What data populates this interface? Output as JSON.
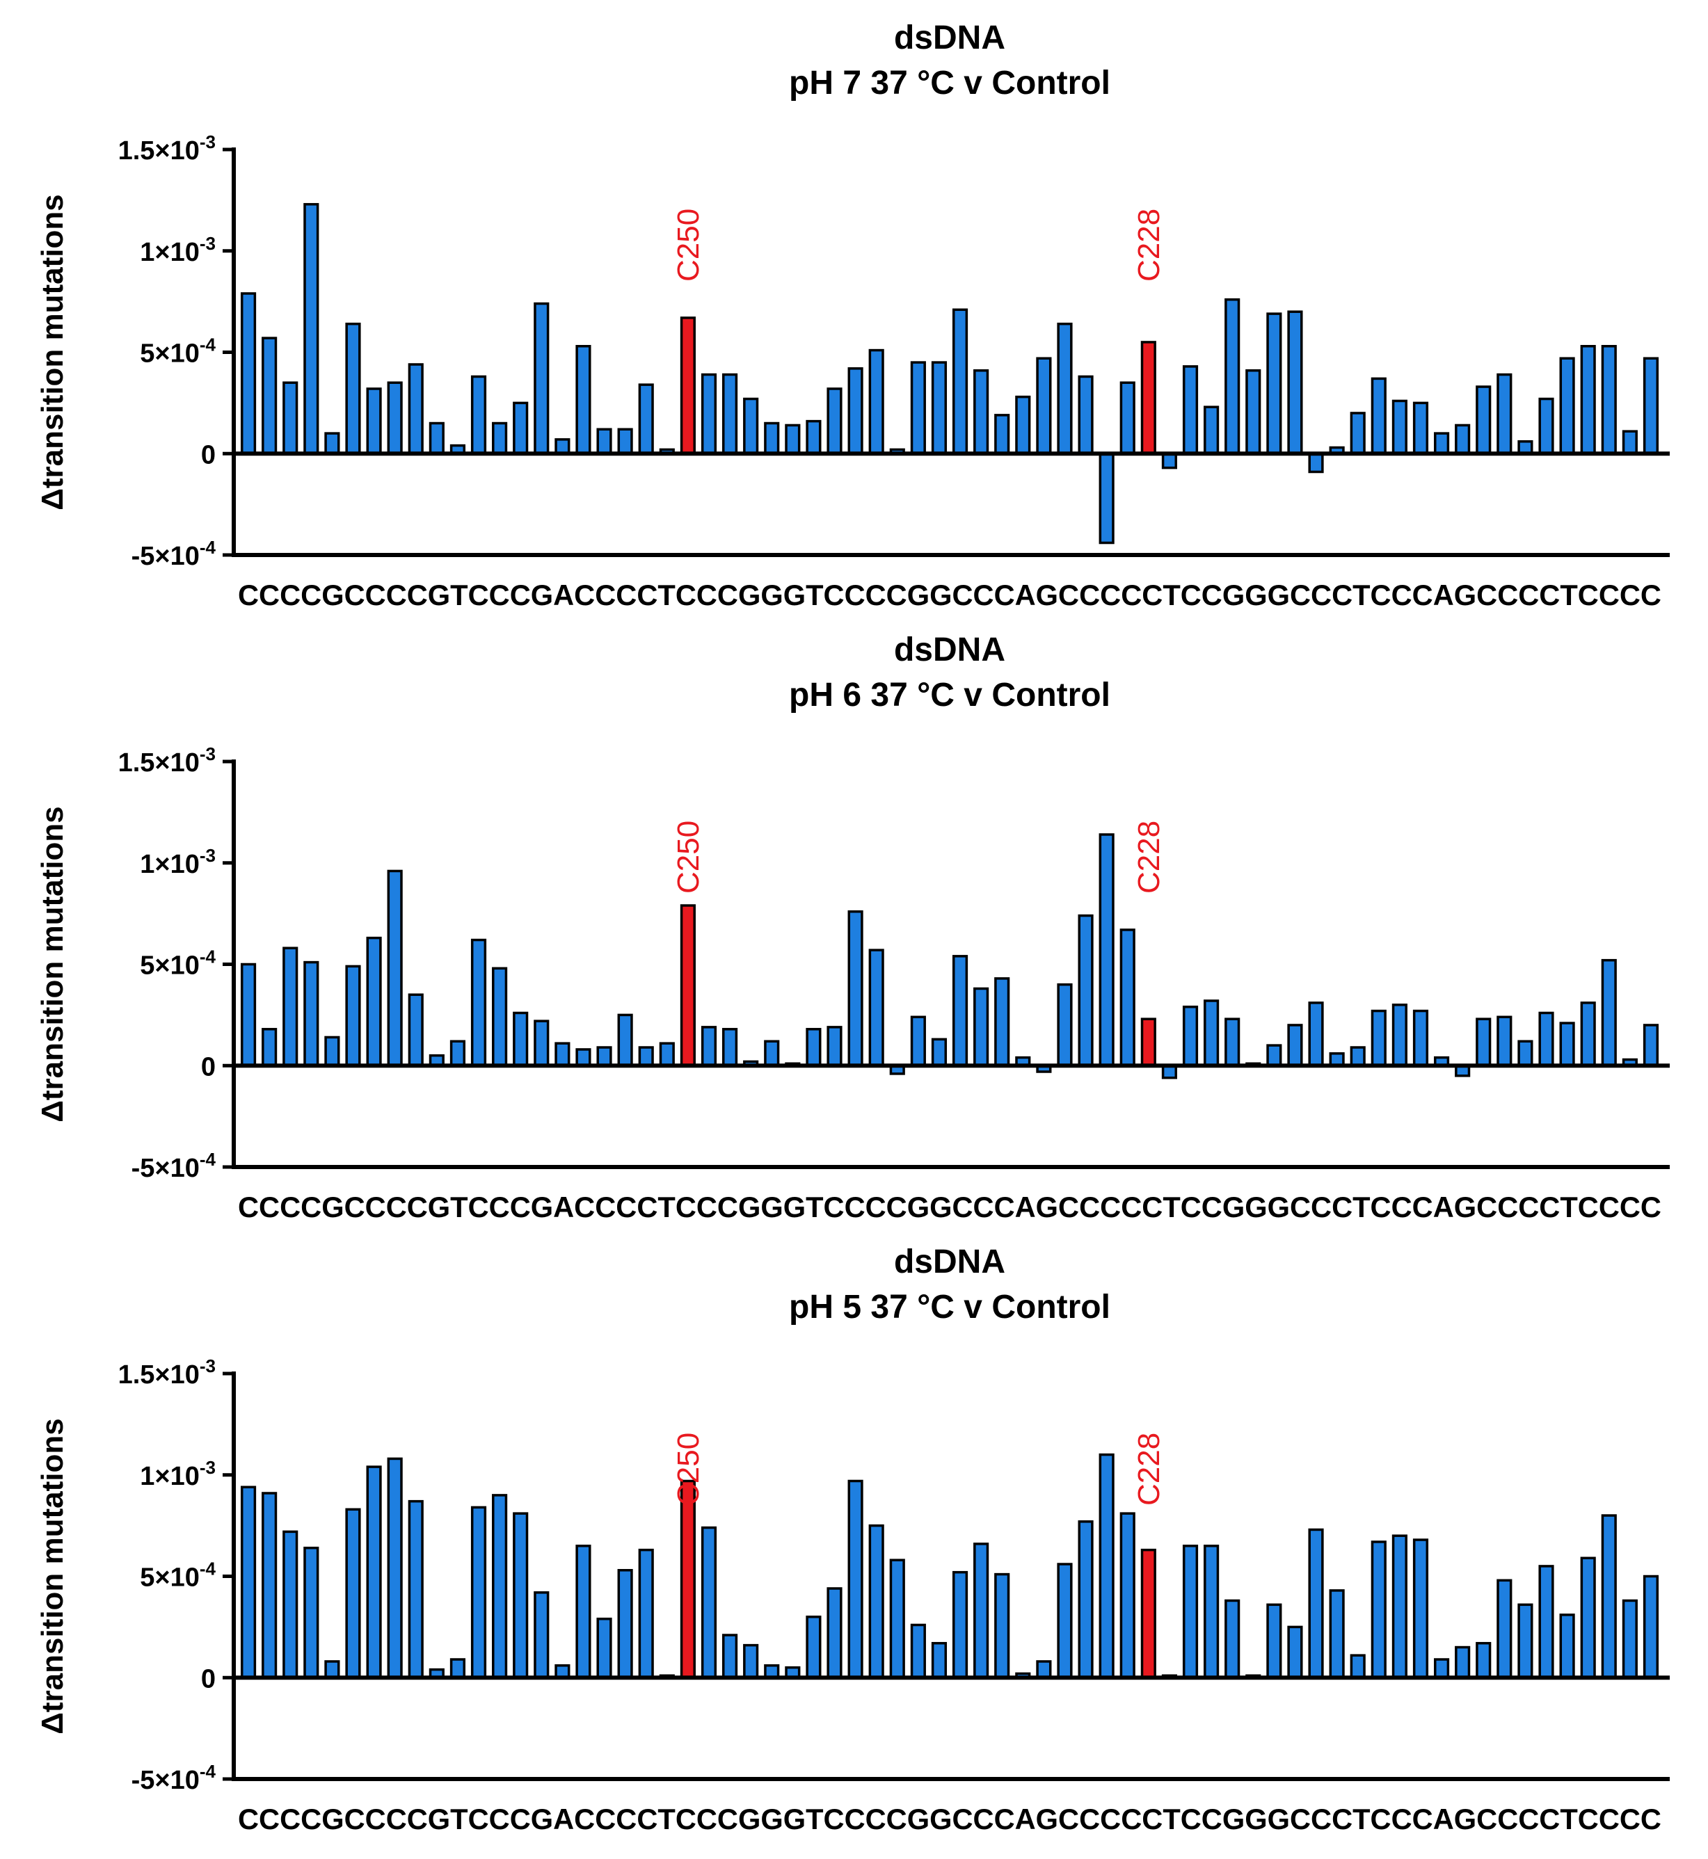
{
  "chart_data": [
    {
      "type": "bar",
      "title": "dsDNA",
      "subtitle": "pH 7 37 °C v Control",
      "ylabel": "Δtransition mutations",
      "xlabel_sequence": "CCCCGCCCCGTCCCGACCCCTCCCGGGTCCCCGGCCCAGCCCCCTCCGGGCCCTCCCAGCCCCTCCCC",
      "ylim": [
        -0.0005,
        0.0015
      ],
      "yticks": [
        {
          "value": -0.0005,
          "base": "-5×10",
          "exp": "-4"
        },
        {
          "value": 0,
          "base": "0",
          "exp": ""
        },
        {
          "value": 0.0005,
          "base": "5×10",
          "exp": "-4"
        },
        {
          "value": 0.001,
          "base": "1×10",
          "exp": "-3"
        },
        {
          "value": 0.0015,
          "base": "1.5×10",
          "exp": "-3"
        }
      ],
      "values": [
        0.00079,
        0.00057,
        0.00035,
        0.00123,
        0.0001,
        0.00064,
        0.00032,
        0.00035,
        0.00044,
        0.00015,
        4e-05,
        0.00038,
        0.00015,
        0.00025,
        0.00074,
        7e-05,
        0.00053,
        0.00012,
        0.00012,
        0.00034,
        2e-05,
        0.00067,
        0.00039,
        0.00039,
        0.00027,
        0.00015,
        0.00014,
        0.00016,
        0.00032,
        0.00042,
        0.00051,
        2e-05,
        0.00045,
        0.00045,
        0.00071,
        0.00041,
        0.00019,
        0.00028,
        0.00047,
        0.00064,
        0.00038,
        -0.00044,
        0.00035,
        0.00055,
        -7e-05,
        0.00043,
        0.00023,
        0.00076,
        0.00041,
        0.00069,
        0.0007,
        -9e-05,
        3e-05,
        0.0002,
        0.00037,
        0.00026,
        0.00025,
        0.0001,
        0.00014,
        0.00033,
        0.00039,
        6e-05,
        0.00027,
        0.00047,
        0.00053,
        0.00053,
        0.00011,
        0.00047
      ],
      "highlight_indices": [
        21,
        43
      ],
      "annotations": [
        {
          "label": "C250",
          "index": 21
        },
        {
          "label": "C228",
          "index": 43
        }
      ],
      "bar_color": "#1e7fe0",
      "highlight_color": "#e8191f",
      "annotation_color": "#e8191f"
    },
    {
      "type": "bar",
      "title": "dsDNA",
      "subtitle": "pH 6 37 °C v Control",
      "ylabel": "Δtransition mutations",
      "xlabel_sequence": "CCCCGCCCCGTCCCGACCCCTCCCGGGTCCCCGGCCCAGCCCCCTCCGGGCCCTCCCAGCCCCTCCCC",
      "ylim": [
        -0.0005,
        0.0015
      ],
      "yticks": [
        {
          "value": -0.0005,
          "base": "-5×10",
          "exp": "-4"
        },
        {
          "value": 0,
          "base": "0",
          "exp": ""
        },
        {
          "value": 0.0005,
          "base": "5×10",
          "exp": "-4"
        },
        {
          "value": 0.001,
          "base": "1×10",
          "exp": "-3"
        },
        {
          "value": 0.0015,
          "base": "1.5×10",
          "exp": "-3"
        }
      ],
      "values": [
        0.0005,
        0.00018,
        0.00058,
        0.00051,
        0.00014,
        0.00049,
        0.00063,
        0.00096,
        0.00035,
        5e-05,
        0.00012,
        0.00062,
        0.00048,
        0.00026,
        0.00022,
        0.00011,
        8e-05,
        9e-05,
        0.00025,
        9e-05,
        0.00011,
        0.00079,
        0.00019,
        0.00018,
        2e-05,
        0.00012,
        0.0,
        0.00018,
        0.00019,
        0.00076,
        0.00057,
        -4e-05,
        0.00024,
        0.00013,
        0.00054,
        0.00038,
        0.00043,
        4e-05,
        -3e-05,
        0.0004,
        0.00074,
        0.00114,
        0.00067,
        0.00023,
        -6e-05,
        0.00029,
        0.00032,
        0.00023,
        0.0,
        0.0001,
        0.0002,
        0.00031,
        6e-05,
        9e-05,
        0.00027,
        0.0003,
        0.00027,
        4e-05,
        -5e-05,
        0.00023,
        0.00024,
        0.00012,
        0.00026,
        0.00021,
        0.00031,
        0.00052,
        3e-05,
        0.0002
      ],
      "highlight_indices": [
        21,
        43
      ],
      "annotations": [
        {
          "label": "C250",
          "index": 21
        },
        {
          "label": "C228",
          "index": 43
        }
      ],
      "bar_color": "#1e7fe0",
      "highlight_color": "#e8191f",
      "annotation_color": "#e8191f"
    },
    {
      "type": "bar",
      "title": "dsDNA",
      "subtitle": "pH 5 37 °C v Control",
      "ylabel": "Δtransition mutations",
      "xlabel_sequence": "CCCCGCCCCGTCCCGACCCCTCCCGGGTCCCCGGCCCAGCCCCCTCCGGGCCCTCCCAGCCCCTCCCC",
      "ylim": [
        -0.0005,
        0.0015
      ],
      "yticks": [
        {
          "value": -0.0005,
          "base": "-5×10",
          "exp": "-4"
        },
        {
          "value": 0,
          "base": "0",
          "exp": ""
        },
        {
          "value": 0.0005,
          "base": "5×10",
          "exp": "-4"
        },
        {
          "value": 0.001,
          "base": "1×10",
          "exp": "-3"
        },
        {
          "value": 0.0015,
          "base": "1.5×10",
          "exp": "-3"
        }
      ],
      "values": [
        0.00094,
        0.00091,
        0.00072,
        0.00064,
        8e-05,
        0.00083,
        0.00104,
        0.00108,
        0.00087,
        4e-05,
        9e-05,
        0.00084,
        0.0009,
        0.00081,
        0.00042,
        6e-05,
        0.00065,
        0.00029,
        0.00053,
        0.00063,
        1e-05,
        0.00097,
        0.00074,
        0.00021,
        0.00016,
        6e-05,
        5e-05,
        0.0003,
        0.00044,
        0.00097,
        0.00075,
        0.00058,
        0.00026,
        0.00017,
        0.00052,
        0.00066,
        0.00051,
        2e-05,
        8e-05,
        0.00056,
        0.00077,
        0.0011,
        0.00081,
        0.00063,
        0.0,
        0.00065,
        0.00065,
        0.00038,
        1e-05,
        0.00036,
        0.00025,
        0.00073,
        0.00043,
        0.00011,
        0.00067,
        0.0007,
        0.00068,
        9e-05,
        0.00015,
        0.00017,
        0.00048,
        0.00036,
        0.00055,
        0.00031,
        0.00059,
        0.0008,
        0.00038,
        0.0005
      ],
      "highlight_indices": [
        21,
        43
      ],
      "annotations": [
        {
          "label": "C250",
          "index": 21
        },
        {
          "label": "C228",
          "index": 43
        }
      ],
      "bar_color": "#1e7fe0",
      "highlight_color": "#e8191f",
      "annotation_color": "#e8191f"
    }
  ]
}
